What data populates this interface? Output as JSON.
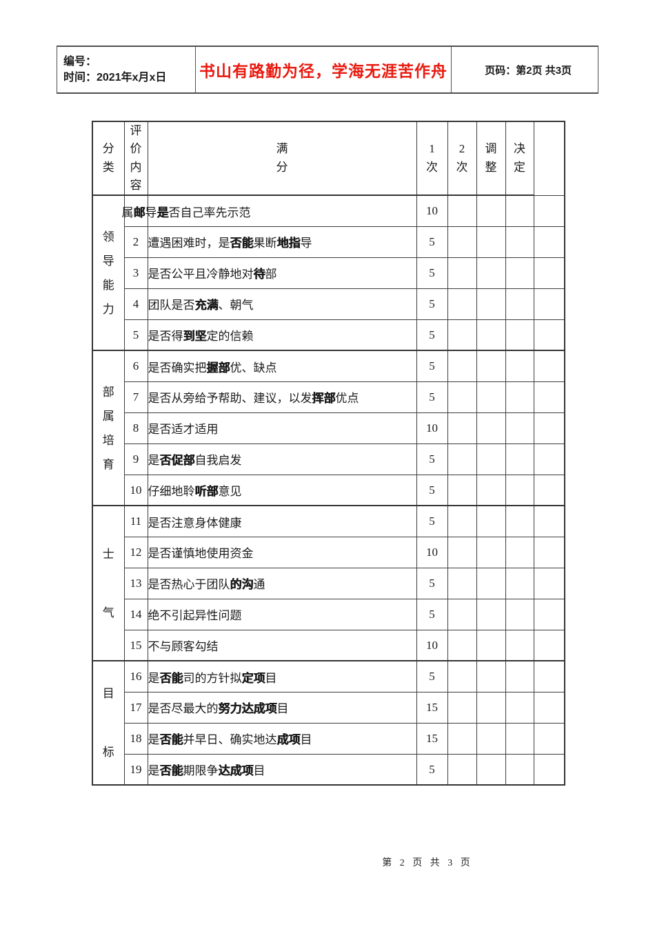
{
  "header": {
    "number_label": "编号：",
    "date_label": "时间：2021年x月x日",
    "motto": "书山有路勤为径，学海无涯苦作舟",
    "motto_color": "#e8190f",
    "page_label": "页码：",
    "page_value": "第2页 共3页"
  },
  "table": {
    "col_headers": [
      "分\n类",
      "评　价　内　容",
      "满\n分",
      "1\n次",
      "2\n次",
      "调\n整",
      "决\n定"
    ],
    "groups": [
      {
        "label": "领导能力",
        "rows": [
          {
            "num": "",
            "overlap": true,
            "segments": [
              [
                "属",
                0
              ],
              [
                "邮",
                1
              ],
              [
                "导",
                0
              ],
              [
                "是",
                1
              ],
              [
                "否自己率先示范",
                0
              ]
            ],
            "score": "10"
          },
          {
            "num": "2",
            "segments": [
              [
                "遭遇困难时，是",
                0
              ],
              [
                "否能",
                1
              ],
              [
                "果断",
                0
              ],
              [
                "地指",
                1
              ],
              [
                "导",
                0
              ]
            ],
            "score": "5"
          },
          {
            "num": "3",
            "segments": [
              [
                "是否公平且冷静地对",
                0
              ],
              [
                "待",
                1
              ],
              [
                "部",
                0
              ]
            ],
            "score": "5"
          },
          {
            "num": "4",
            "segments": [
              [
                "团队是否",
                0
              ],
              [
                "充满",
                1
              ],
              [
                "、朝气",
                0
              ]
            ],
            "score": "5"
          },
          {
            "num": "5",
            "segments": [
              [
                "是否得",
                0
              ],
              [
                "到坚",
                1
              ],
              [
                "定的信赖",
                0
              ]
            ],
            "score": "5"
          }
        ]
      },
      {
        "label": "部属培育",
        "rows": [
          {
            "num": "6",
            "segments": [
              [
                "是否确实把",
                0
              ],
              [
                "握部",
                1
              ],
              [
                "优、缺点",
                0
              ]
            ],
            "score": "5"
          },
          {
            "num": "7",
            "segments": [
              [
                "是否从旁给予帮助、建议，以发",
                0
              ],
              [
                "挥部",
                1
              ],
              [
                "优点",
                0
              ]
            ],
            "score": "5"
          },
          {
            "num": "8",
            "segments": [
              [
                "是否适才适用",
                0
              ]
            ],
            "score": "10"
          },
          {
            "num": "9",
            "segments": [
              [
                "是",
                0
              ],
              [
                "否促部",
                1
              ],
              [
                "自我启发",
                0
              ]
            ],
            "score": "5"
          },
          {
            "num": "10",
            "segments": [
              [
                "仔细地聆",
                0
              ],
              [
                "听部",
                1
              ],
              [
                "意见",
                0
              ]
            ],
            "score": "5"
          }
        ]
      },
      {
        "label": "士气",
        "rows": [
          {
            "num": "11",
            "segments": [
              [
                "是否注意身体健康",
                0
              ]
            ],
            "score": "5"
          },
          {
            "num": "12",
            "segments": [
              [
                "是否谨慎地使用资金",
                0
              ]
            ],
            "score": "10"
          },
          {
            "num": "13",
            "segments": [
              [
                "是否热心于团队",
                0
              ],
              [
                "的沟",
                1
              ],
              [
                "通",
                0
              ]
            ],
            "score": "5"
          },
          {
            "num": "14",
            "segments": [
              [
                "绝不引起异性问题",
                0
              ]
            ],
            "score": "5"
          },
          {
            "num": "15",
            "segments": [
              [
                "不与顾客勾结",
                0
              ]
            ],
            "score": "10"
          }
        ]
      },
      {
        "label": "目标",
        "rows": [
          {
            "num": "16",
            "segments": [
              [
                "是",
                0
              ],
              [
                "否能",
                1
              ],
              [
                "司的方针拟",
                0
              ],
              [
                "定项",
                1
              ],
              [
                "目",
                0
              ]
            ],
            "score": "5"
          },
          {
            "num": "17",
            "segments": [
              [
                "是否尽最大的",
                0
              ],
              [
                "努力达成项",
                1
              ],
              [
                "目",
                0
              ]
            ],
            "score": "15"
          },
          {
            "num": "18",
            "segments": [
              [
                "是",
                0
              ],
              [
                "否能",
                1
              ],
              [
                "并早日、确实地达",
                0
              ],
              [
                "成项",
                1
              ],
              [
                "目",
                0
              ]
            ],
            "score": "15"
          },
          {
            "num": "19",
            "segments": [
              [
                "是",
                0
              ],
              [
                "否能",
                1
              ],
              [
                "期限争",
                0
              ],
              [
                "达成项",
                1
              ],
              [
                "目",
                0
              ]
            ],
            "score": "5"
          }
        ]
      }
    ]
  },
  "footer": {
    "page_text": "第 2 页 共 3 页"
  }
}
